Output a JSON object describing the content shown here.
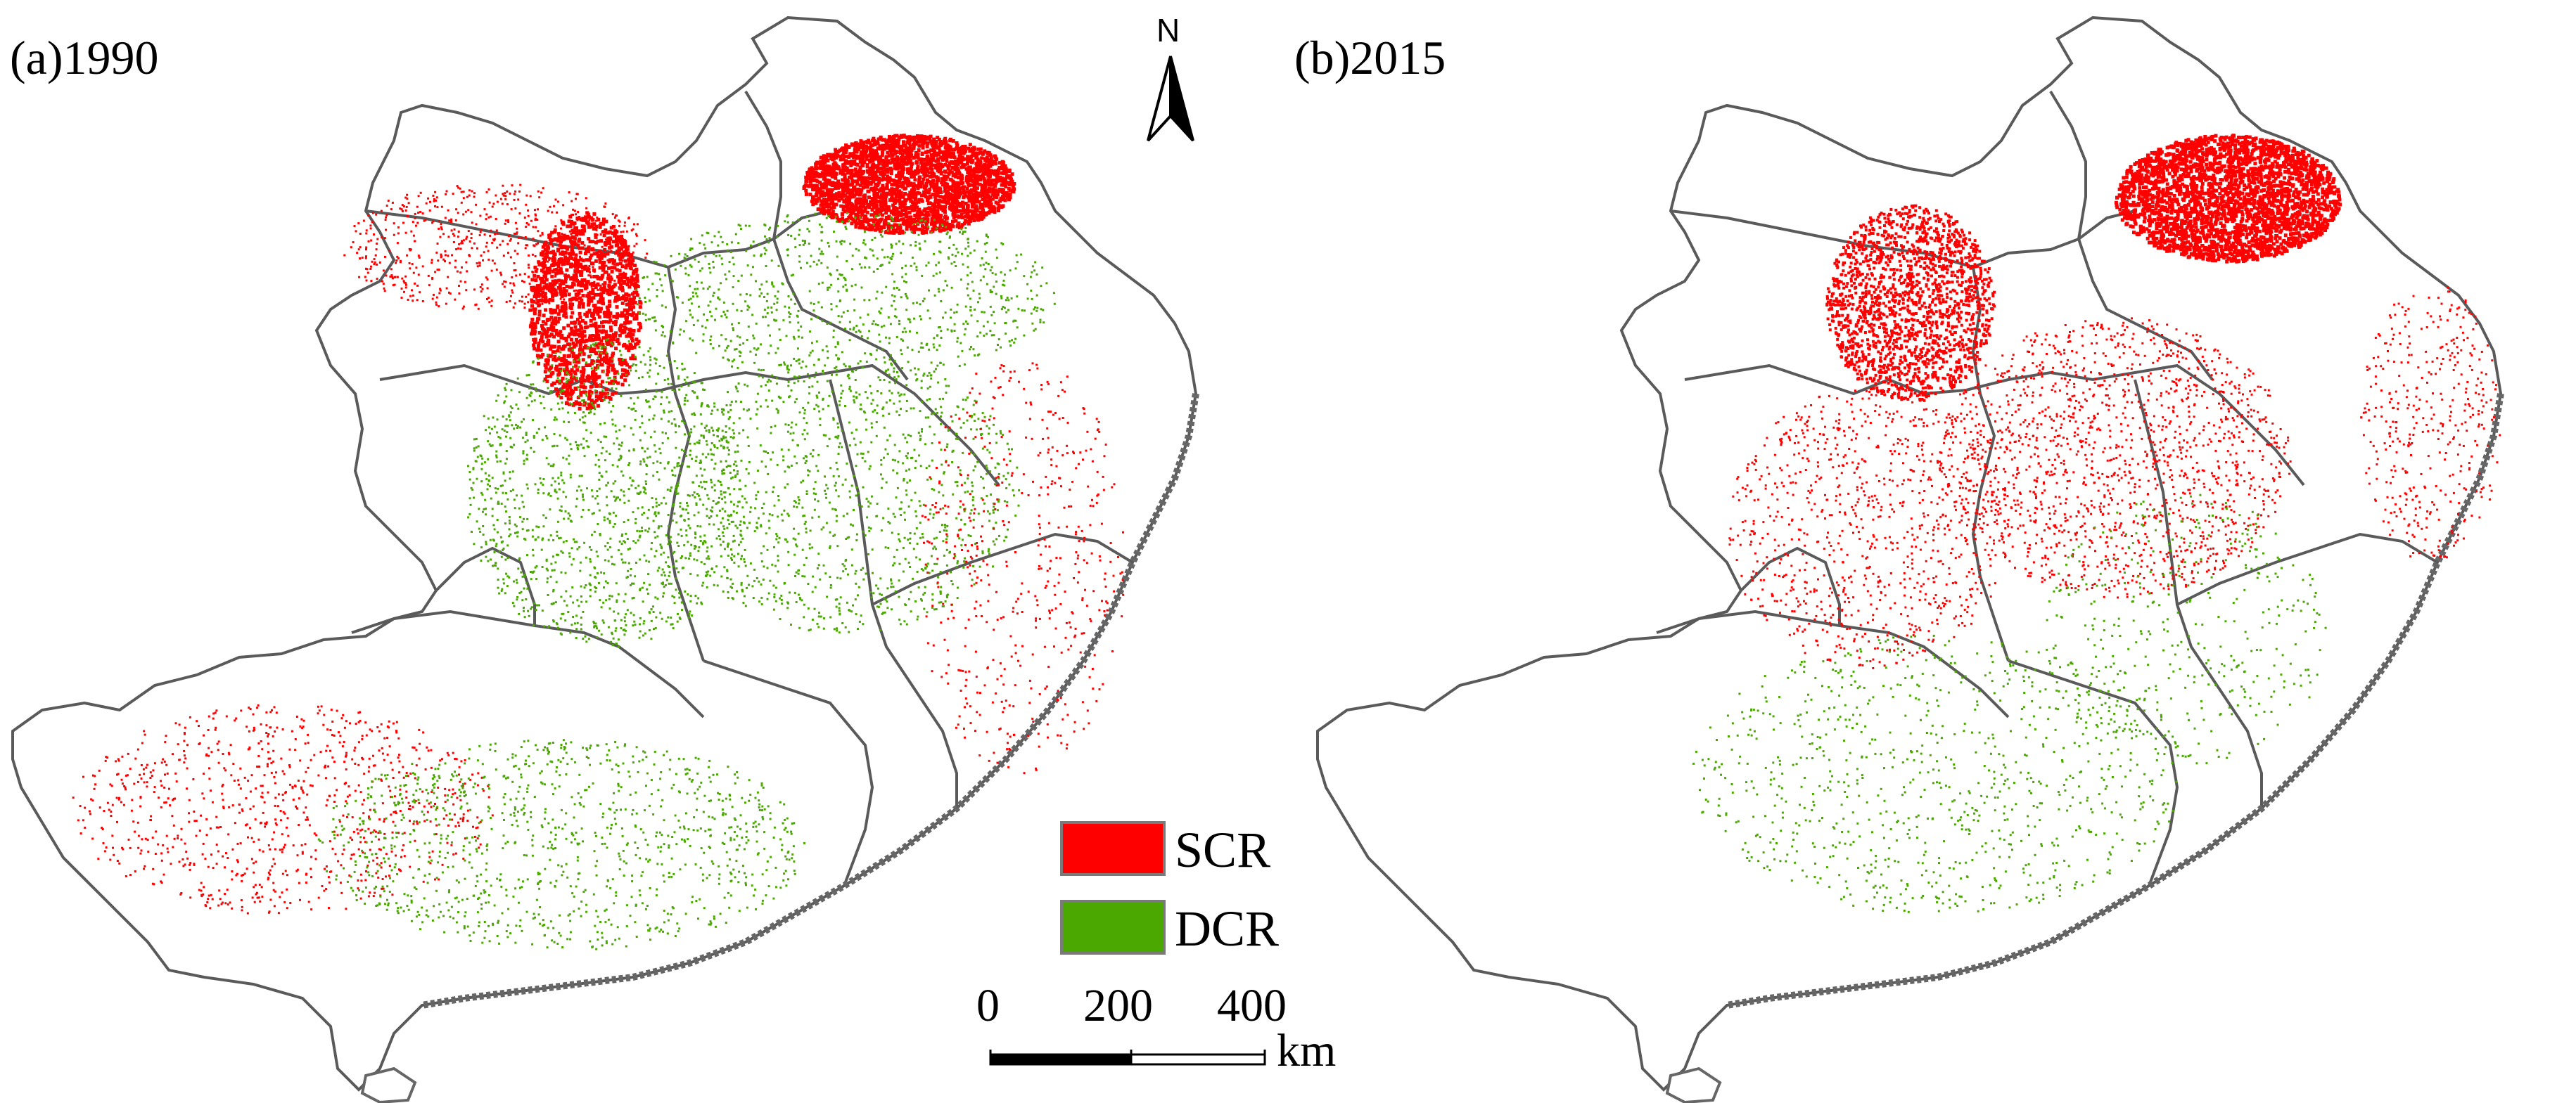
{
  "panels": [
    {
      "label": "(a)1990"
    },
    {
      "label": "(b)2015"
    }
  ],
  "north_arrow": {
    "label": "N"
  },
  "legend": {
    "items": [
      {
        "label": "SCR",
        "color": "#ff0000"
      },
      {
        "label": "DCR",
        "color": "#4aa800"
      }
    ]
  },
  "scale_bar": {
    "ticks": [
      "0",
      "200",
      "400"
    ],
    "unit": "km"
  },
  "colors": {
    "boundary": "#5a5a5a",
    "coast": "#666666"
  }
}
